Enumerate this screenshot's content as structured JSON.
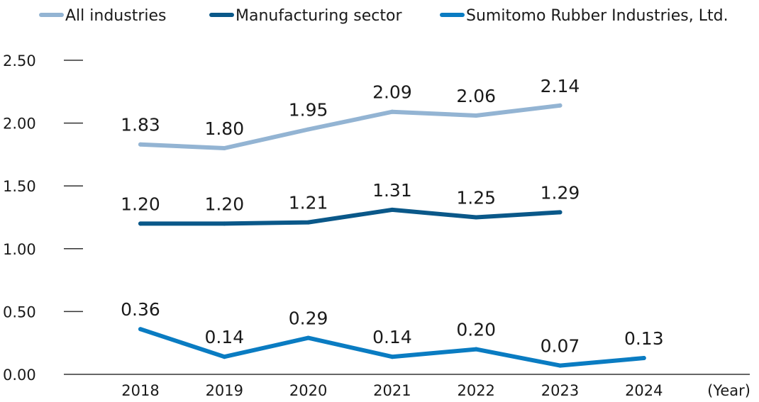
{
  "chart_data": {
    "type": "line",
    "x_unit_label": "(Year)",
    "categories": [
      "2018",
      "2019",
      "2020",
      "2021",
      "2022",
      "2023",
      "2024"
    ],
    "y_ticks": [
      "0.00",
      "0.50",
      "1.00",
      "1.50",
      "2.00",
      "2.50"
    ],
    "ylim": [
      0,
      2.5
    ],
    "grid": false,
    "legend_position": "top",
    "series": [
      {
        "name": "All industries",
        "color": "#93b4d3",
        "values": [
          1.83,
          1.8,
          1.95,
          2.09,
          2.06,
          2.14,
          null
        ],
        "labels": [
          "1.83",
          "1.80",
          "1.95",
          "2.09",
          "2.06",
          "2.14",
          ""
        ]
      },
      {
        "name": "Manufacturing sector",
        "color": "#0a5889",
        "values": [
          1.2,
          1.2,
          1.21,
          1.31,
          1.25,
          1.29,
          null
        ],
        "labels": [
          "1.20",
          "1.20",
          "1.21",
          "1.31",
          "1.25",
          "1.29",
          ""
        ]
      },
      {
        "name": "Sumitomo Rubber Industries, Ltd.",
        "color": "#0a7cc2",
        "values": [
          0.36,
          0.14,
          0.29,
          0.14,
          0.2,
          0.07,
          0.13
        ],
        "labels": [
          "0.36",
          "0.14",
          "0.29",
          "0.14",
          "0.20",
          "0.07",
          "0.13"
        ]
      }
    ]
  }
}
